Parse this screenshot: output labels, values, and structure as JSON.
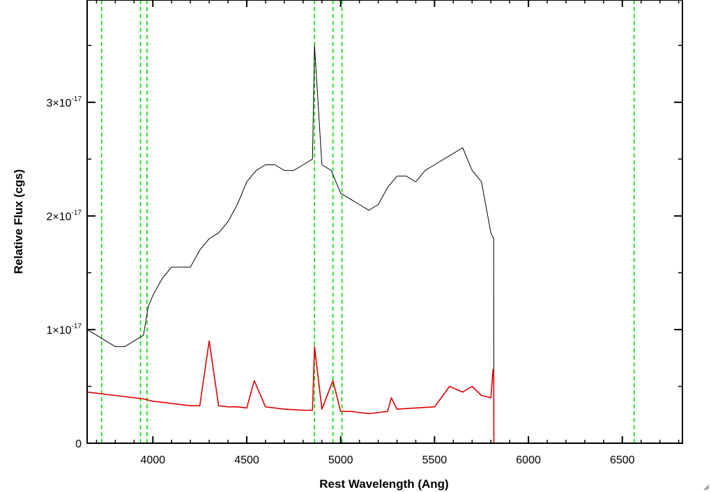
{
  "chart_data": {
    "type": "line",
    "title": "",
    "xlabel": "Rest Wavelength (Ang)",
    "ylabel": "Relative Flux (cgs)",
    "xlim": [
      3650,
      6820
    ],
    "ylim": [
      0,
      3.9e-17
    ],
    "x_ticks": [
      {
        "value": 4000,
        "label": "4000"
      },
      {
        "value": 4500,
        "label": "4500"
      },
      {
        "value": 5000,
        "label": "5000"
      },
      {
        "value": 5500,
        "label": "5500"
      },
      {
        "value": 6000,
        "label": "6000"
      },
      {
        "value": 6500,
        "label": "6500"
      }
    ],
    "y_ticks": [
      {
        "value": 0,
        "label": "0",
        "mantissa": "0",
        "exponent": ""
      },
      {
        "value": 1e-17,
        "label": "1×10-17",
        "mantissa": "1×10",
        "exponent": "-17"
      },
      {
        "value": 2e-17,
        "label": "2×10-17",
        "mantissa": "2×10",
        "exponent": "-17"
      },
      {
        "value": 3e-17,
        "label": "3×10-17",
        "mantissa": "3×10",
        "exponent": "-17"
      }
    ],
    "reference_lines": {
      "color": "#00dd00",
      "style": "dashed",
      "x": [
        3727,
        3934,
        3969,
        4861,
        4959,
        5007,
        6563
      ]
    },
    "series": [
      {
        "color": "#000000",
        "x": [
          3650,
          3700,
          3750,
          3800,
          3850,
          3900,
          3950,
          3975,
          4000,
          4050,
          4100,
          4150,
          4200,
          4250,
          4300,
          4350,
          4400,
          4450,
          4500,
          4550,
          4600,
          4650,
          4700,
          4750,
          4800,
          4850,
          4861,
          4900,
          4950,
          5000,
          5050,
          5100,
          5150,
          5200,
          5250,
          5300,
          5350,
          5400,
          5450,
          5500,
          5550,
          5600,
          5650,
          5700,
          5750,
          5800,
          5815,
          5816,
          5830,
          6000,
          6500,
          6820
        ],
        "y": [
          1e-17,
          9.5e-18,
          9e-18,
          8.5e-18,
          8.5e-18,
          9e-18,
          9.5e-18,
          1.2e-17,
          1.3e-17,
          1.45e-17,
          1.55e-17,
          1.55e-17,
          1.55e-17,
          1.7e-17,
          1.8e-17,
          1.85e-17,
          1.95e-17,
          2.1e-17,
          2.3e-17,
          2.4e-17,
          2.45e-17,
          2.45e-17,
          2.4e-17,
          2.4e-17,
          2.45e-17,
          2.5e-17,
          3.5e-17,
          2.45e-17,
          2.4e-17,
          2.2e-17,
          2.15e-17,
          2.1e-17,
          2.05e-17,
          2.1e-17,
          2.25e-17,
          2.35e-17,
          2.35e-17,
          2.3e-17,
          2.4e-17,
          2.45e-17,
          2.5e-17,
          2.55e-17,
          2.6e-17,
          2.4e-17,
          2.3e-17,
          1.85e-17,
          1.8e-17,
          0,
          0,
          0,
          0,
          0
        ]
      },
      {
        "color": "#dd0000",
        "x": [
          3650,
          3700,
          3750,
          3800,
          3850,
          3900,
          3950,
          4000,
          4050,
          4100,
          4150,
          4200,
          4250,
          4300,
          4350,
          4400,
          4450,
          4500,
          4540,
          4600,
          4700,
          4800,
          4850,
          4861,
          4900,
          4959,
          5000,
          5050,
          5100,
          5150,
          5200,
          5250,
          5270,
          5300,
          5400,
          5500,
          5580,
          5650,
          5700,
          5750,
          5800,
          5812,
          5815,
          5816,
          6000,
          6500,
          6820
        ],
        "y": [
          4.5e-18,
          4.4e-18,
          4.3e-18,
          4.2e-18,
          4.1e-18,
          4e-18,
          3.9e-18,
          3.7e-18,
          3.6e-18,
          3.5e-18,
          3.4e-18,
          3.3e-18,
          3.3e-18,
          9e-18,
          3.3e-18,
          3.2e-18,
          3.2e-18,
          3.1e-18,
          5.5e-18,
          3.2e-18,
          3e-18,
          2.9e-18,
          2.9e-18,
          8.5e-18,
          3e-18,
          5.5e-18,
          2.8e-18,
          2.8e-18,
          2.7e-18,
          2.6e-18,
          2.7e-18,
          2.8e-18,
          4e-18,
          3e-18,
          3.1e-18,
          3.2e-18,
          5e-18,
          4.5e-18,
          5e-18,
          4.2e-18,
          4e-18,
          6.5e-18,
          6e-18,
          0,
          0,
          0,
          0
        ]
      }
    ]
  }
}
